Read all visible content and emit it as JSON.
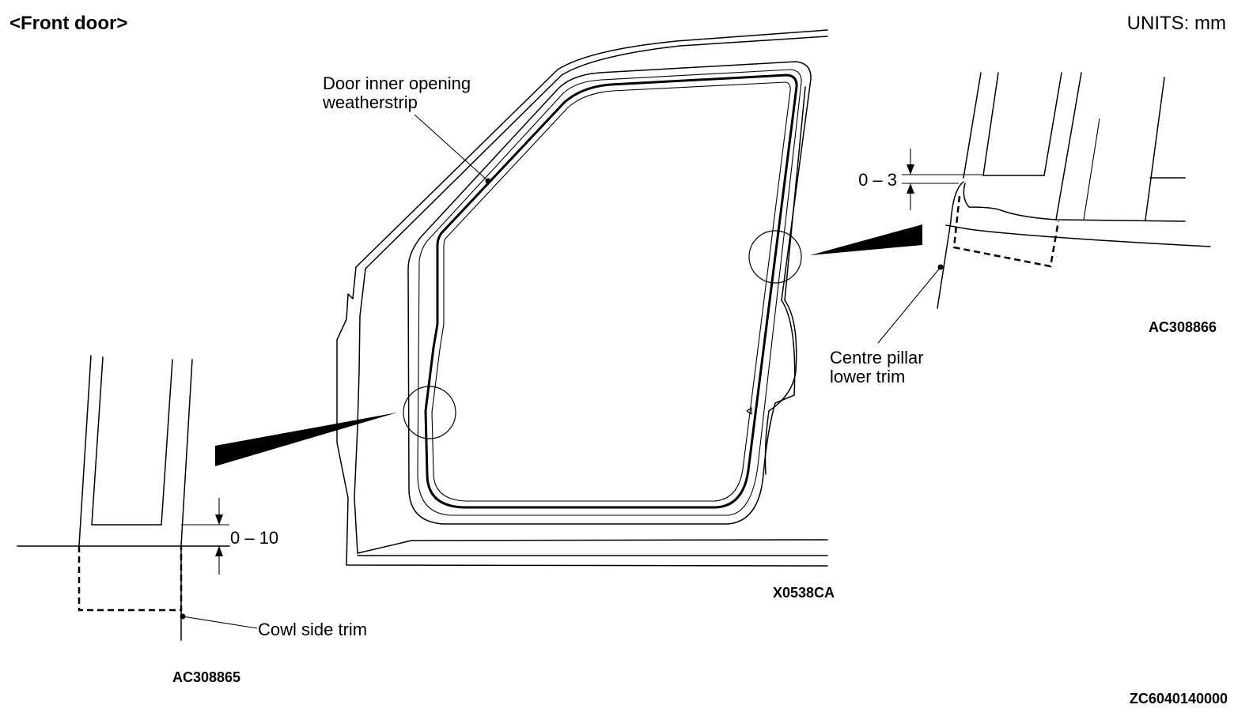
{
  "header": {
    "title": "<Front door>",
    "units": "UNITS: mm"
  },
  "labels": {
    "weatherstrip_line1": "Door inner opening",
    "weatherstrip_line2": "weatherstrip",
    "centre_pillar_line1": "Centre pillar",
    "centre_pillar_line2": "lower trim",
    "cowl_side_trim": "Cowl side trim"
  },
  "dimensions": {
    "front_gap": "0 – 10",
    "rear_gap": "0 – 3"
  },
  "codes": {
    "main": "X0538CA",
    "detail_rear": "AC308866",
    "detail_front": "AC308865",
    "sheet": "ZC6040140000"
  }
}
